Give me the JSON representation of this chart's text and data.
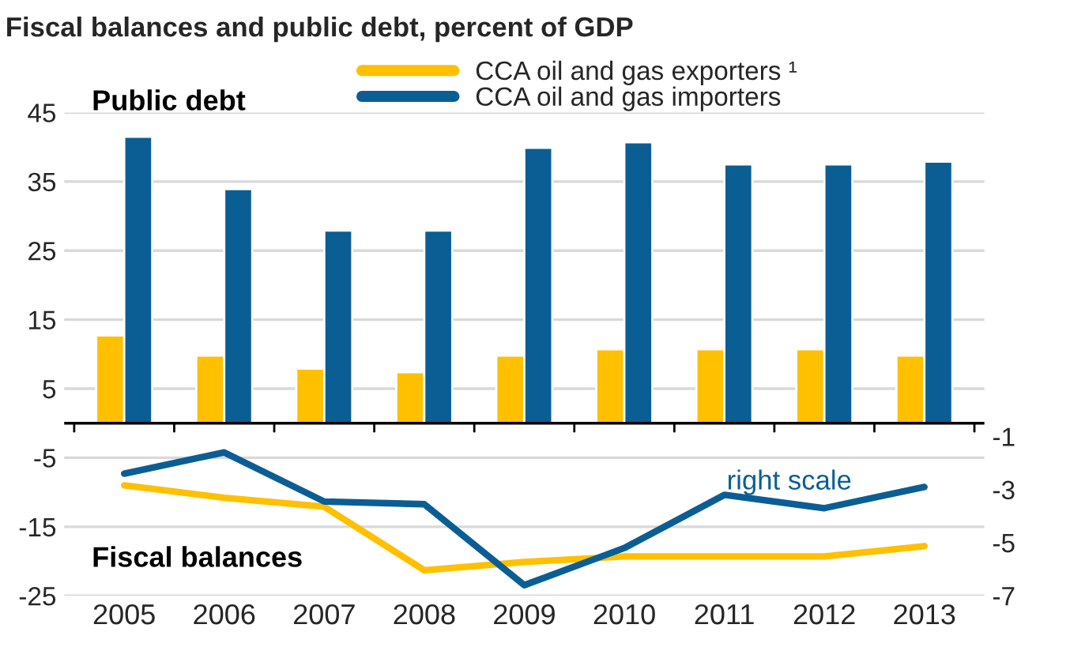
{
  "chart_data": {
    "type": "bar",
    "title": "Fiscal balances and public debt, percent of GDP",
    "categories": [
      "2005",
      "2006",
      "2007",
      "2008",
      "2009",
      "2010",
      "2011",
      "2012",
      "2013"
    ],
    "series": [
      {
        "name": "CCA oil and gas exporters ¹",
        "color": "#ffc000",
        "values": [
          12.7,
          9.8,
          7.9,
          7.4,
          9.8,
          10.7,
          10.7,
          10.7,
          9.8
        ]
      },
      {
        "name": "CCA oil and gas importers",
        "color": "#0b5e94",
        "values": [
          41.5,
          33.9,
          27.9,
          27.9,
          39.9,
          40.7,
          37.5,
          37.5,
          37.9
        ]
      },
      {
        "type": "line",
        "color": "#ffc000",
        "values": [
          -9.0,
          -10.8,
          -12.1,
          -21.3,
          -20.1,
          -19.3,
          -19.3,
          -19.3,
          -17.8
        ]
      },
      {
        "type": "line",
        "axis": "y2",
        "color": "#0b5e94",
        "values": [
          -2.4,
          -1.6,
          -3.45,
          -3.55,
          -6.6,
          -5.2,
          -3.2,
          -3.7,
          -2.9
        ]
      }
    ],
    "ylim": [
      -25,
      45
    ],
    "yticks": [
      -25,
      -15,
      -5,
      5,
      15,
      25,
      35,
      45
    ],
    "y2lim": [
      -7,
      11.2
    ],
    "y2ticks": [
      -7,
      -5,
      -3,
      -1
    ],
    "ref_lines": [
      {
        "axis": "y",
        "value": 0,
        "color": "#000000"
      }
    ],
    "annotations": [
      "Public debt",
      "Fiscal balances",
      "right scale"
    ],
    "grid": "y",
    "legend": "top",
    "line_style": "solid",
    "marker": "none"
  }
}
